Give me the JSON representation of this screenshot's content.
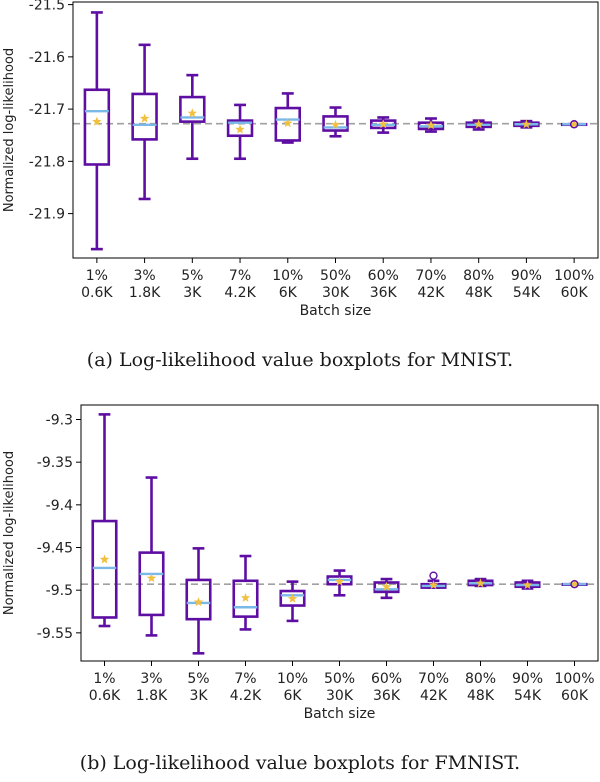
{
  "figure": {
    "colors": {
      "box": "#5e0ea3",
      "median": "#7ab8e8",
      "mean": "#f2c040",
      "reference": "#a0a0a0"
    }
  },
  "chart_data": [
    {
      "type": "boxplot",
      "caption": "(a) Log-likelihood value boxplots for MNIST.",
      "xlabel": "Batch size",
      "ylabel": "Normalized log-likelihood",
      "categories": [
        {
          "pct": "1%",
          "size": "0.6K"
        },
        {
          "pct": "3%",
          "size": "1.8K"
        },
        {
          "pct": "5%",
          "size": "3K"
        },
        {
          "pct": "7%",
          "size": "4.2K"
        },
        {
          "pct": "10%",
          "size": "6K"
        },
        {
          "pct": "50%",
          "size": "30K"
        },
        {
          "pct": "60%",
          "size": "36K"
        },
        {
          "pct": "70%",
          "size": "42K"
        },
        {
          "pct": "80%",
          "size": "48K"
        },
        {
          "pct": "90%",
          "size": "54K"
        },
        {
          "pct": "100%",
          "size": "60K"
        }
      ],
      "ylim": [
        -21.985,
        -21.495
      ],
      "yticks": [
        -21.5,
        -21.6,
        -21.7,
        -21.8,
        -21.9
      ],
      "reference_line": -21.728,
      "boxes": [
        {
          "min": -21.968,
          "q1": -21.806,
          "median": -21.704,
          "q3": -21.663,
          "max": -21.515,
          "mean": -21.724,
          "outliers": []
        },
        {
          "min": -21.872,
          "q1": -21.758,
          "median": -21.73,
          "q3": -21.671,
          "max": -21.577,
          "mean": -21.718,
          "outliers": []
        },
        {
          "min": -21.795,
          "q1": -21.724,
          "median": -21.716,
          "q3": -21.677,
          "max": -21.635,
          "mean": -21.708,
          "outliers": []
        },
        {
          "min": -21.795,
          "q1": -21.751,
          "median": -21.726,
          "q3": -21.722,
          "max": -21.692,
          "mean": -21.739,
          "outliers": []
        },
        {
          "min": -21.764,
          "q1": -21.76,
          "median": -21.72,
          "q3": -21.698,
          "max": -21.67,
          "mean": -21.727,
          "outliers": []
        },
        {
          "min": -21.752,
          "q1": -21.741,
          "median": -21.735,
          "q3": -21.714,
          "max": -21.697,
          "mean": -21.73,
          "outliers": []
        },
        {
          "min": -21.745,
          "q1": -21.736,
          "median": -21.73,
          "q3": -21.722,
          "max": -21.716,
          "mean": -21.729,
          "outliers": []
        },
        {
          "min": -21.743,
          "q1": -21.738,
          "median": -21.733,
          "q3": -21.726,
          "max": -21.718,
          "mean": -21.731,
          "outliers": []
        },
        {
          "min": -21.739,
          "q1": -21.734,
          "median": -21.73,
          "q3": -21.726,
          "max": -21.722,
          "mean": -21.729,
          "outliers": []
        },
        {
          "min": -21.735,
          "q1": -21.732,
          "median": -21.729,
          "q3": -21.726,
          "max": -21.723,
          "mean": -21.729,
          "outliers": []
        },
        {
          "min": -21.729,
          "q1": -21.729,
          "median": -21.729,
          "q3": -21.729,
          "max": -21.729,
          "mean": -21.729,
          "outliers": [
            -21.729
          ]
        }
      ]
    },
    {
      "type": "boxplot",
      "caption": "(b) Log-likelihood value boxplots for FMNIST.",
      "xlabel": "Batch size",
      "ylabel": "Normalized log-likelihood",
      "categories": [
        {
          "pct": "1%",
          "size": "0.6K"
        },
        {
          "pct": "3%",
          "size": "1.8K"
        },
        {
          "pct": "5%",
          "size": "3K"
        },
        {
          "pct": "7%",
          "size": "4.2K"
        },
        {
          "pct": "10%",
          "size": "6K"
        },
        {
          "pct": "50%",
          "size": "30K"
        },
        {
          "pct": "60%",
          "size": "36K"
        },
        {
          "pct": "70%",
          "size": "42K"
        },
        {
          "pct": "80%",
          "size": "48K"
        },
        {
          "pct": "90%",
          "size": "54K"
        },
        {
          "pct": "100%",
          "size": "60K"
        }
      ],
      "ylim": [
        -9.583,
        -9.283
      ],
      "yticks": [
        -9.3,
        -9.35,
        -9.4,
        -9.45,
        -9.5,
        -9.55
      ],
      "reference_line": -9.493,
      "boxes": [
        {
          "min": -9.542,
          "q1": -9.532,
          "median": -9.474,
          "q3": -9.419,
          "max": -9.294,
          "mean": -9.464,
          "outliers": []
        },
        {
          "min": -9.553,
          "q1": -9.529,
          "median": -9.481,
          "q3": -9.456,
          "max": -9.368,
          "mean": -9.486,
          "outliers": []
        },
        {
          "min": -9.574,
          "q1": -9.534,
          "median": -9.515,
          "q3": -9.488,
          "max": -9.451,
          "mean": -9.514,
          "outliers": []
        },
        {
          "min": -9.546,
          "q1": -9.531,
          "median": -9.52,
          "q3": -9.489,
          "max": -9.46,
          "mean": -9.509,
          "outliers": []
        },
        {
          "min": -9.536,
          "q1": -9.518,
          "median": -9.506,
          "q3": -9.501,
          "max": -9.49,
          "mean": -9.51,
          "outliers": []
        },
        {
          "min": -9.506,
          "q1": -9.493,
          "median": -9.488,
          "q3": -9.484,
          "max": -9.477,
          "mean": -9.49,
          "outliers": []
        },
        {
          "min": -9.509,
          "q1": -9.502,
          "median": -9.499,
          "q3": -9.491,
          "max": -9.487,
          "mean": -9.496,
          "outliers": []
        },
        {
          "min": -9.497,
          "q1": -9.497,
          "median": -9.495,
          "q3": -9.493,
          "max": -9.489,
          "mean": -9.494,
          "outliers": [
            -9.483
          ]
        },
        {
          "min": -9.495,
          "q1": -9.494,
          "median": -9.492,
          "q3": -9.489,
          "max": -9.487,
          "mean": -9.492,
          "outliers": []
        },
        {
          "min": -9.498,
          "q1": -9.496,
          "median": -9.494,
          "q3": -9.491,
          "max": -9.489,
          "mean": -9.494,
          "outliers": []
        },
        {
          "min": -9.493,
          "q1": -9.493,
          "median": -9.493,
          "q3": -9.493,
          "max": -9.493,
          "mean": -9.493,
          "outliers": [
            -9.493
          ]
        }
      ]
    }
  ]
}
